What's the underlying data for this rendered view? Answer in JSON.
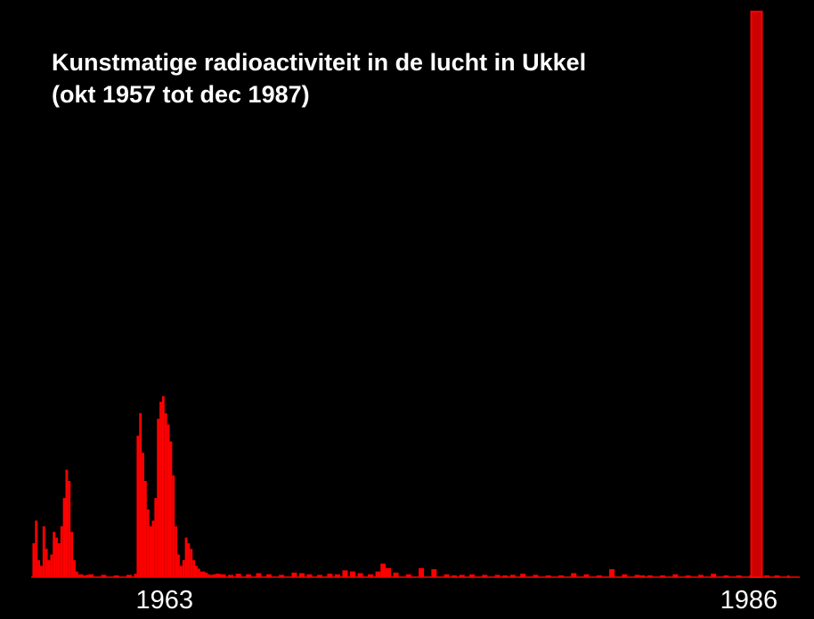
{
  "chart_data": {
    "type": "bar",
    "title_lines": [
      "Kunstmatige radioactiviteit in de lucht in Ukkel",
      "(okt 1957 tot dec 1987)"
    ],
    "xlabel": "",
    "ylabel": "",
    "x_range": [
      1957.75,
      1988.0
    ],
    "y_range": [
      0,
      100
    ],
    "tick_labels": [
      {
        "year": 1963,
        "label": "1963"
      },
      {
        "year": 1986,
        "label": "1986"
      }
    ],
    "colors": {
      "background": "#000000",
      "bars": "#ff0000",
      "peak_bar": "#cc0000",
      "axis": "#ff0000",
      "text": "#ffffff"
    },
    "grid": false,
    "legend": "none",
    "series": [
      {
        "x": [
          1957.8,
          1957.9,
          1958.0,
          1958.1,
          1958.2,
          1958.3,
          1958.4,
          1958.5,
          1958.6,
          1958.7,
          1958.8,
          1958.9,
          1959.0,
          1959.1,
          1959.2,
          1959.3,
          1959.4,
          1959.5,
          1959.6,
          1959.7,
          1959.8,
          1959.9,
          1960.0,
          1960.5,
          1961.0,
          1961.5,
          1961.8,
          1961.9,
          1962.0,
          1962.1,
          1962.2,
          1962.3,
          1962.4,
          1962.5,
          1962.6,
          1962.7,
          1962.8,
          1962.9,
          1963.0,
          1963.1,
          1963.2,
          1963.3,
          1963.4,
          1963.5,
          1963.6,
          1963.7,
          1963.8,
          1963.9,
          1964.0,
          1964.1,
          1964.2,
          1964.3,
          1964.4,
          1964.5,
          1964.6,
          1964.7,
          1964.8,
          1964.9,
          1965.0,
          1965.2,
          1965.5,
          1965.8,
          1966.2,
          1966.6,
          1967.0,
          1967.5,
          1968.0,
          1968.3,
          1968.6,
          1969.0,
          1969.4,
          1969.7,
          1970.0,
          1970.3,
          1970.6,
          1971.0,
          1971.3,
          1971.5,
          1971.7,
          1972.0,
          1972.5,
          1973.0,
          1973.5,
          1974.0,
          1974.3,
          1974.6,
          1975.0,
          1975.5,
          1976.0,
          1976.3,
          1976.6,
          1977.0,
          1977.5,
          1978.0,
          1978.5,
          1979.0,
          1979.5,
          1980.0,
          1980.5,
          1981.0,
          1981.5,
          1981.7,
          1982.0,
          1982.5,
          1983.0,
          1983.5,
          1984.0,
          1984.5,
          1985.0,
          1985.5,
          1986.0,
          1986.3,
          1986.6,
          1987.0,
          1987.5
        ],
        "y": [
          6,
          10,
          3,
          2,
          9,
          5,
          3,
          4,
          8,
          7,
          6,
          9,
          14,
          19,
          17,
          8,
          3,
          1,
          0.5,
          0.5,
          0.3,
          0.4,
          0.5,
          0.4,
          0.3,
          0.4,
          0.6,
          25,
          29,
          22,
          17,
          12,
          9,
          10,
          14,
          28,
          31,
          32,
          29,
          27,
          24,
          18,
          9,
          4,
          2,
          3,
          7,
          6,
          5,
          3,
          2,
          1.5,
          1,
          1,
          0.8,
          0.5,
          0.4,
          0.5,
          0.6,
          0.5,
          0.4,
          0.6,
          0.5,
          0.7,
          0.5,
          0.4,
          0.8,
          0.7,
          0.5,
          0.4,
          0.6,
          0.5,
          1.2,
          1,
          0.7,
          0.5,
          1,
          2.4,
          1.6,
          0.8,
          0.5,
          1.6,
          1.4,
          0.5,
          0.3,
          0.4,
          0.5,
          0.4,
          0.4,
          0.3,
          0.4,
          0.6,
          0.4,
          0.3,
          0.3,
          0.7,
          0.5,
          0.3,
          1.4,
          0.5,
          0.4,
          0.3,
          0.3,
          0.3,
          0.5,
          0.3,
          0.4,
          0.6,
          0.3,
          0.3,
          0.3,
          100,
          0.3,
          0.3,
          0.3
        ]
      }
    ]
  }
}
